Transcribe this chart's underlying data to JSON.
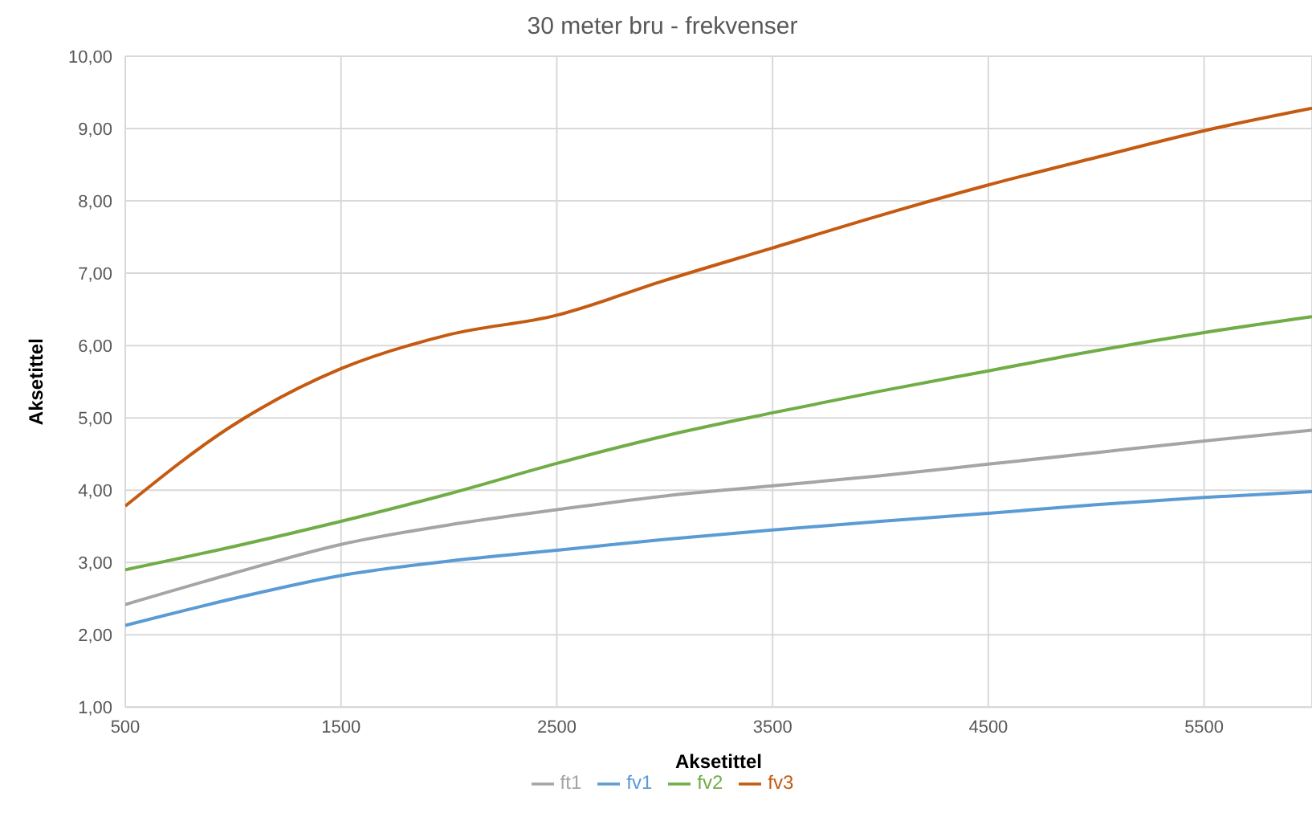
{
  "chart_data": {
    "type": "line",
    "title": "30 meter bru - frekvenser",
    "xlabel": "Aksetittel",
    "ylabel": "Aksetittel",
    "x": [
      500,
      1000,
      1500,
      2000,
      2500,
      3000,
      3500,
      4000,
      4500,
      5000,
      5500,
      6000
    ],
    "series": [
      {
        "name": "fv1",
        "color": "#5b9bd5",
        "values": [
          2.13,
          2.5,
          2.82,
          3.02,
          3.17,
          3.32,
          3.45,
          3.57,
          3.68,
          3.8,
          3.9,
          3.98
        ]
      },
      {
        "name": "fv2",
        "color": "#70ad47",
        "values": [
          2.9,
          3.22,
          3.57,
          3.95,
          4.37,
          4.75,
          5.07,
          5.37,
          5.65,
          5.93,
          6.18,
          6.4
        ]
      },
      {
        "name": "fv3",
        "color": "#c55a11",
        "values": [
          3.78,
          4.9,
          5.68,
          6.15,
          6.42,
          6.9,
          7.35,
          7.8,
          8.22,
          8.6,
          8.97,
          9.28
        ]
      },
      {
        "name": "ft1",
        "color": "#a5a5a5",
        "values": [
          2.42,
          2.85,
          3.25,
          3.52,
          3.73,
          3.92,
          4.06,
          4.2,
          4.36,
          4.52,
          4.68,
          4.83
        ]
      }
    ],
    "xlim": [
      500,
      6000
    ],
    "xticks": [
      500,
      1500,
      2500,
      3500,
      4500,
      5500
    ],
    "ylim": [
      1,
      10
    ],
    "yticks": [
      {
        "value": 1,
        "label": "1,00"
      },
      {
        "value": 2,
        "label": "2,00"
      },
      {
        "value": 3,
        "label": "3,00"
      },
      {
        "value": 4,
        "label": "4,00"
      },
      {
        "value": 5,
        "label": "5,00"
      },
      {
        "value": 6,
        "label": "6,00"
      },
      {
        "value": 7,
        "label": "7,00"
      },
      {
        "value": 8,
        "label": "8,00"
      },
      {
        "value": 9,
        "label": "9,00"
      },
      {
        "value": 10,
        "label": "10,00"
      }
    ],
    "grid": true,
    "legend": "bottom",
    "marker": "none",
    "line_style": "solid"
  }
}
